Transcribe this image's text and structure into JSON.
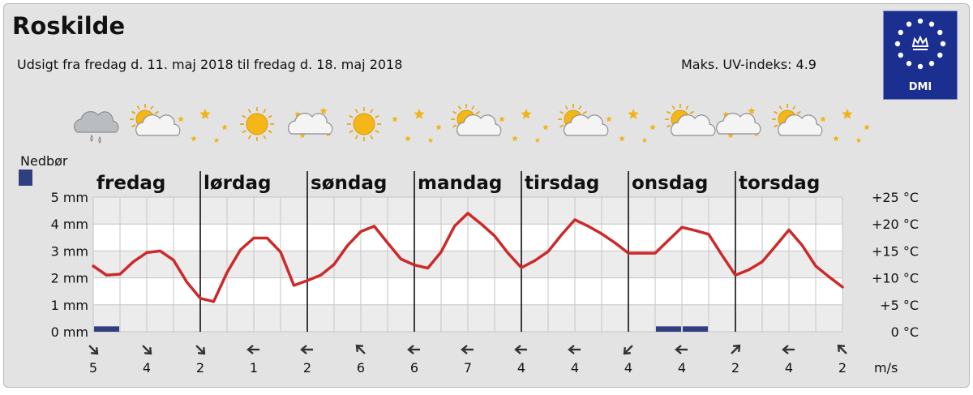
{
  "header": {
    "city": "Roskilde",
    "subtitle": "Udsigt fra fredag d. 11. maj 2018 til fredag d. 18. maj 2018",
    "uv": "Maks. UV-indeks: 4.9",
    "logo_text": "DMI"
  },
  "legend": {
    "precip_label": "Nedbør"
  },
  "colors": {
    "temperature_line": "#cc2a2a",
    "precipitation_bar": "#2f3f7f",
    "plot_background": "#ffffff",
    "plot_band": "#ececec",
    "grid": "#c6c6c6",
    "panel_background": "#e3e3e3",
    "logo_background": "#1a2f8f"
  },
  "weather_icons": [
    {
      "slot": 1,
      "icon": "rain-cloud-icon"
    },
    {
      "slot": 2,
      "icon": "sun-cloud-icon"
    },
    {
      "slot": 3,
      "icon": "clear-night-stars-icon"
    },
    {
      "slot": 4,
      "icon": "sun-icon"
    },
    {
      "slot": 5,
      "icon": "night-cloud-stars-icon"
    },
    {
      "slot": 6,
      "icon": "sun-icon"
    },
    {
      "slot": 7,
      "icon": "clear-night-stars-icon"
    },
    {
      "slot": 8,
      "icon": "sun-cloud-icon"
    },
    {
      "slot": 9,
      "icon": "clear-night-stars-icon"
    },
    {
      "slot": 10,
      "icon": "sun-cloud-icon"
    },
    {
      "slot": 11,
      "icon": "clear-night-stars-icon"
    },
    {
      "slot": 12,
      "icon": "sun-cloud-icon"
    },
    {
      "slot": 13,
      "icon": "night-cloud-stars-icon"
    },
    {
      "slot": 14,
      "icon": "sun-cloud-icon"
    },
    {
      "slot": 15,
      "icon": "clear-night-stars-icon"
    }
  ],
  "wind": {
    "unit": "m/s",
    "slots": [
      {
        "speed": "5",
        "direction": "southeast"
      },
      {
        "speed": "4",
        "direction": "southeast"
      },
      {
        "speed": "2",
        "direction": "southeast"
      },
      {
        "speed": "1",
        "direction": "west"
      },
      {
        "speed": "2",
        "direction": "west"
      },
      {
        "speed": "6",
        "direction": "northwest"
      },
      {
        "speed": "6",
        "direction": "west"
      },
      {
        "speed": "7",
        "direction": "west"
      },
      {
        "speed": "4",
        "direction": "west"
      },
      {
        "speed": "4",
        "direction": "west"
      },
      {
        "speed": "4",
        "direction": "southwest"
      },
      {
        "speed": "4",
        "direction": "west"
      },
      {
        "speed": "2",
        "direction": "northeast"
      },
      {
        "speed": "4",
        "direction": "west"
      },
      {
        "speed": "2",
        "direction": "northwest"
      }
    ]
  },
  "chart_data": {
    "type": "line",
    "days": [
      "fredag",
      "lørdag",
      "søndag",
      "mandag",
      "tirsdag",
      "onsdag",
      "torsdag"
    ],
    "x_unit": "hours from start of forecast",
    "xlim": [
      0,
      168
    ],
    "precip_axis": {
      "ticks": [
        "0 mm",
        "1 mm",
        "2 mm",
        "3 mm",
        "4 mm",
        "5 mm"
      ],
      "ylim": [
        0,
        5
      ]
    },
    "temp_axis": {
      "ticks": [
        "0 °C",
        "+5 °C",
        "+10 °C",
        "+15 °C",
        "+20 °C",
        "+25 °C"
      ],
      "ylim": [
        0,
        25
      ]
    },
    "grid": true,
    "series": [
      {
        "kind": "temperature",
        "x": [
          0,
          3,
          6,
          9,
          12,
          15,
          18,
          21,
          24,
          27,
          30,
          33,
          36,
          39,
          42,
          45,
          48,
          51,
          54,
          57,
          60,
          63,
          66,
          69,
          72,
          75,
          78,
          81,
          84,
          87,
          90,
          93,
          96,
          99,
          102,
          105,
          108,
          111,
          114,
          117,
          120,
          123,
          126,
          129,
          132,
          135,
          138,
          141,
          144,
          147,
          150,
          153,
          156,
          159,
          162,
          165,
          168
        ],
        "y": [
          12.2,
          10.5,
          10.7,
          13.0,
          14.7,
          15.0,
          13.3,
          9.2,
          6.2,
          5.6,
          11.0,
          15.2,
          17.4,
          17.4,
          14.8,
          8.6,
          9.5,
          10.5,
          12.5,
          16.0,
          18.6,
          19.6,
          16.5,
          13.5,
          12.4,
          11.8,
          14.8,
          19.6,
          22.0,
          20.0,
          17.8,
          14.6,
          11.9,
          13.2,
          14.9,
          18.0,
          20.8,
          19.6,
          18.2,
          16.5,
          14.6,
          14.6,
          14.6,
          17.0,
          19.4,
          18.8,
          18.1,
          14.2,
          10.5,
          11.5,
          13.0,
          15.9,
          18.9,
          16.0,
          12.2,
          10.2,
          8.3
        ]
      },
      {
        "kind": "precipitation",
        "bars": [
          {
            "from": 0,
            "to": 6,
            "mm": 0.2
          },
          {
            "from": 126,
            "to": 132,
            "mm": 0.2
          },
          {
            "from": 132,
            "to": 138,
            "mm": 0.2
          }
        ]
      }
    ]
  }
}
